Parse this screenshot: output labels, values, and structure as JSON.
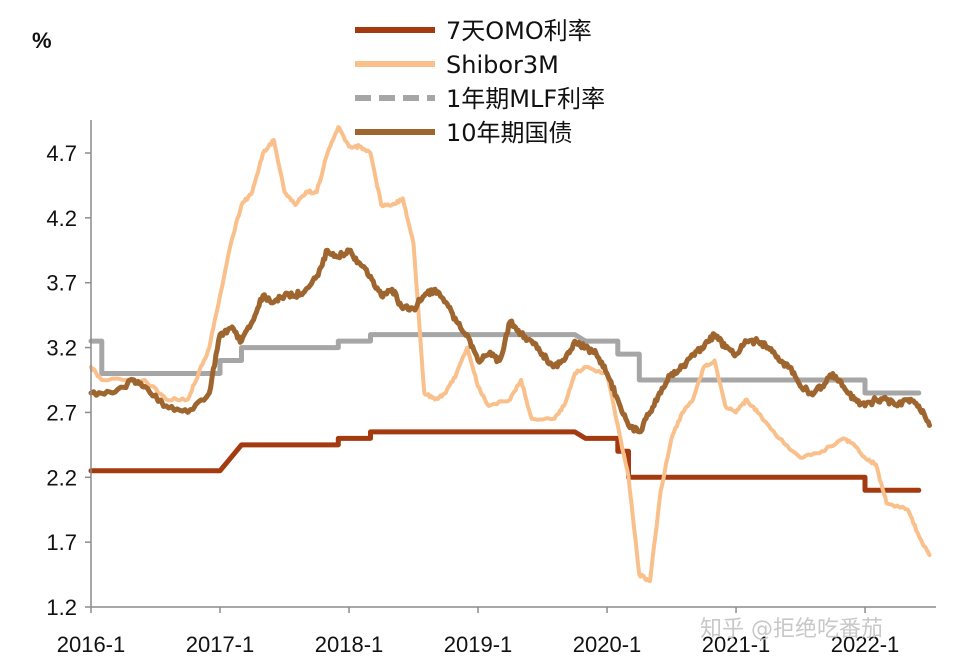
{
  "chart_data": {
    "type": "line",
    "unit_label": "%",
    "watermark": "知乎 @拒绝吃番茄",
    "ylim": [
      1.2,
      5.0
    ],
    "y_ticks": [
      "1.2",
      "1.7",
      "2.2",
      "2.7",
      "3.2",
      "3.7",
      "4.2",
      "4.7"
    ],
    "x_ticks": [
      "2016-1",
      "2017-1",
      "2018-1",
      "2019-1",
      "2020-1",
      "2021-1",
      "2022-1"
    ],
    "grid": false,
    "legend_position": "top",
    "series": [
      {
        "name": "7天OMO利率",
        "color": "#a43a10",
        "style": "solid",
        "points": [
          [
            "2016-01",
            2.25
          ],
          [
            "2017-01",
            2.25
          ],
          [
            "2017-02",
            2.35
          ],
          [
            "2017-03",
            2.45
          ],
          [
            "2017-12",
            2.45
          ],
          [
            "2017-12",
            2.5
          ],
          [
            "2018-03",
            2.5
          ],
          [
            "2018-03",
            2.55
          ],
          [
            "2019-10",
            2.55
          ],
          [
            "2019-11",
            2.5
          ],
          [
            "2020-02",
            2.5
          ],
          [
            "2020-02",
            2.4
          ],
          [
            "2020-03",
            2.4
          ],
          [
            "2020-03",
            2.2
          ],
          [
            "2022-01",
            2.2
          ],
          [
            "2022-01",
            2.1
          ],
          [
            "2022-06",
            2.1
          ]
        ]
      },
      {
        "name": "Shibor3M",
        "color": "#f9c08c",
        "style": "solid",
        "points": [
          [
            "2016-01",
            3.05
          ],
          [
            "2016-02",
            2.95
          ],
          [
            "2016-06",
            2.95
          ],
          [
            "2016-08",
            2.8
          ],
          [
            "2016-10",
            2.8
          ],
          [
            "2016-11",
            3.0
          ],
          [
            "2016-12",
            3.2
          ],
          [
            "2017-01",
            3.6
          ],
          [
            "2017-02",
            4.0
          ],
          [
            "2017-03",
            4.3
          ],
          [
            "2017-04",
            4.4
          ],
          [
            "2017-05",
            4.7
          ],
          [
            "2017-06",
            4.8
          ],
          [
            "2017-07",
            4.4
          ],
          [
            "2017-08",
            4.3
          ],
          [
            "2017-09",
            4.4
          ],
          [
            "2017-10",
            4.4
          ],
          [
            "2017-11",
            4.7
          ],
          [
            "2017-12",
            4.9
          ],
          [
            "2018-01",
            4.75
          ],
          [
            "2018-02",
            4.75
          ],
          [
            "2018-03",
            4.7
          ],
          [
            "2018-04",
            4.3
          ],
          [
            "2018-05",
            4.3
          ],
          [
            "2018-06",
            4.35
          ],
          [
            "2018-07",
            4.0
          ],
          [
            "2018-08",
            2.85
          ],
          [
            "2018-09",
            2.8
          ],
          [
            "2018-10",
            2.85
          ],
          [
            "2018-11",
            3.0
          ],
          [
            "2018-12",
            3.2
          ],
          [
            "2019-01",
            2.9
          ],
          [
            "2019-02",
            2.75
          ],
          [
            "2019-04",
            2.8
          ],
          [
            "2019-05",
            2.95
          ],
          [
            "2019-06",
            2.65
          ],
          [
            "2019-08",
            2.65
          ],
          [
            "2019-09",
            2.75
          ],
          [
            "2019-10",
            3.0
          ],
          [
            "2019-11",
            3.05
          ],
          [
            "2020-01",
            3.0
          ],
          [
            "2020-02",
            2.6
          ],
          [
            "2020-03",
            2.2
          ],
          [
            "2020-04",
            1.45
          ],
          [
            "2020-05",
            1.4
          ],
          [
            "2020-06",
            2.1
          ],
          [
            "2020-07",
            2.5
          ],
          [
            "2020-08",
            2.7
          ],
          [
            "2020-09",
            2.8
          ],
          [
            "2020-10",
            3.05
          ],
          [
            "2020-11",
            3.1
          ],
          [
            "2020-12",
            2.75
          ],
          [
            "2021-01",
            2.7
          ],
          [
            "2021-02",
            2.8
          ],
          [
            "2021-03",
            2.7
          ],
          [
            "2021-05",
            2.5
          ],
          [
            "2021-07",
            2.35
          ],
          [
            "2021-09",
            2.4
          ],
          [
            "2021-11",
            2.5
          ],
          [
            "2021-12",
            2.45
          ],
          [
            "2022-01",
            2.35
          ],
          [
            "2022-02",
            2.3
          ],
          [
            "2022-03",
            2.0
          ],
          [
            "2022-05",
            1.95
          ],
          [
            "2022-06",
            1.75
          ],
          [
            "2022-07",
            1.6
          ]
        ]
      },
      {
        "name": "1年期MLF利率",
        "color": "#a6a6a6",
        "style": "dashed",
        "points": [
          [
            "2016-01",
            3.25
          ],
          [
            "2016-02",
            3.25
          ],
          [
            "2016-02",
            3.0
          ],
          [
            "2017-01",
            3.0
          ],
          [
            "2017-01",
            3.1
          ],
          [
            "2017-03",
            3.1
          ],
          [
            "2017-03",
            3.2
          ],
          [
            "2017-12",
            3.2
          ],
          [
            "2017-12",
            3.25
          ],
          [
            "2018-03",
            3.25
          ],
          [
            "2018-03",
            3.3
          ],
          [
            "2019-10",
            3.3
          ],
          [
            "2019-11",
            3.25
          ],
          [
            "2020-02",
            3.25
          ],
          [
            "2020-02",
            3.15
          ],
          [
            "2020-04",
            3.15
          ],
          [
            "2020-04",
            2.95
          ],
          [
            "2022-01",
            2.95
          ],
          [
            "2022-01",
            2.85
          ],
          [
            "2022-06",
            2.85
          ]
        ]
      },
      {
        "name": "10年期国债",
        "color": "#9e652e",
        "style": "solid",
        "points": [
          [
            "2016-01",
            2.85
          ],
          [
            "2016-03",
            2.85
          ],
          [
            "2016-05",
            2.95
          ],
          [
            "2016-06",
            2.9
          ],
          [
            "2016-08",
            2.75
          ],
          [
            "2016-10",
            2.7
          ],
          [
            "2016-12",
            2.85
          ],
          [
            "2017-01",
            3.3
          ],
          [
            "2017-02",
            3.35
          ],
          [
            "2017-03",
            3.25
          ],
          [
            "2017-04",
            3.4
          ],
          [
            "2017-05",
            3.6
          ],
          [
            "2017-06",
            3.55
          ],
          [
            "2017-07",
            3.6
          ],
          [
            "2017-08",
            3.6
          ],
          [
            "2017-09",
            3.65
          ],
          [
            "2017-10",
            3.75
          ],
          [
            "2017-11",
            3.95
          ],
          [
            "2017-12",
            3.9
          ],
          [
            "2018-01",
            3.95
          ],
          [
            "2018-02",
            3.85
          ],
          [
            "2018-03",
            3.75
          ],
          [
            "2018-04",
            3.6
          ],
          [
            "2018-05",
            3.65
          ],
          [
            "2018-06",
            3.5
          ],
          [
            "2018-07",
            3.5
          ],
          [
            "2018-08",
            3.6
          ],
          [
            "2018-09",
            3.65
          ],
          [
            "2018-10",
            3.55
          ],
          [
            "2018-11",
            3.4
          ],
          [
            "2018-12",
            3.3
          ],
          [
            "2019-01",
            3.1
          ],
          [
            "2019-02",
            3.15
          ],
          [
            "2019-03",
            3.1
          ],
          [
            "2019-04",
            3.4
          ],
          [
            "2019-05",
            3.3
          ],
          [
            "2019-06",
            3.25
          ],
          [
            "2019-07",
            3.15
          ],
          [
            "2019-08",
            3.05
          ],
          [
            "2019-09",
            3.1
          ],
          [
            "2019-10",
            3.25
          ],
          [
            "2019-11",
            3.2
          ],
          [
            "2019-12",
            3.15
          ],
          [
            "2020-01",
            3.0
          ],
          [
            "2020-02",
            2.8
          ],
          [
            "2020-03",
            2.6
          ],
          [
            "2020-04",
            2.55
          ],
          [
            "2020-05",
            2.7
          ],
          [
            "2020-06",
            2.85
          ],
          [
            "2020-07",
            3.0
          ],
          [
            "2020-08",
            3.05
          ],
          [
            "2020-09",
            3.15
          ],
          [
            "2020-10",
            3.2
          ],
          [
            "2020-11",
            3.3
          ],
          [
            "2020-12",
            3.2
          ],
          [
            "2021-01",
            3.15
          ],
          [
            "2021-02",
            3.25
          ],
          [
            "2021-03",
            3.25
          ],
          [
            "2021-04",
            3.2
          ],
          [
            "2021-05",
            3.1
          ],
          [
            "2021-06",
            3.05
          ],
          [
            "2021-07",
            2.9
          ],
          [
            "2021-08",
            2.85
          ],
          [
            "2021-09",
            2.9
          ],
          [
            "2021-10",
            3.0
          ],
          [
            "2021-11",
            2.9
          ],
          [
            "2021-12",
            2.8
          ],
          [
            "2022-01",
            2.75
          ],
          [
            "2022-02",
            2.8
          ],
          [
            "2022-03",
            2.8
          ],
          [
            "2022-04",
            2.75
          ],
          [
            "2022-05",
            2.8
          ],
          [
            "2022-06",
            2.75
          ],
          [
            "2022-07",
            2.6
          ]
        ]
      }
    ]
  }
}
